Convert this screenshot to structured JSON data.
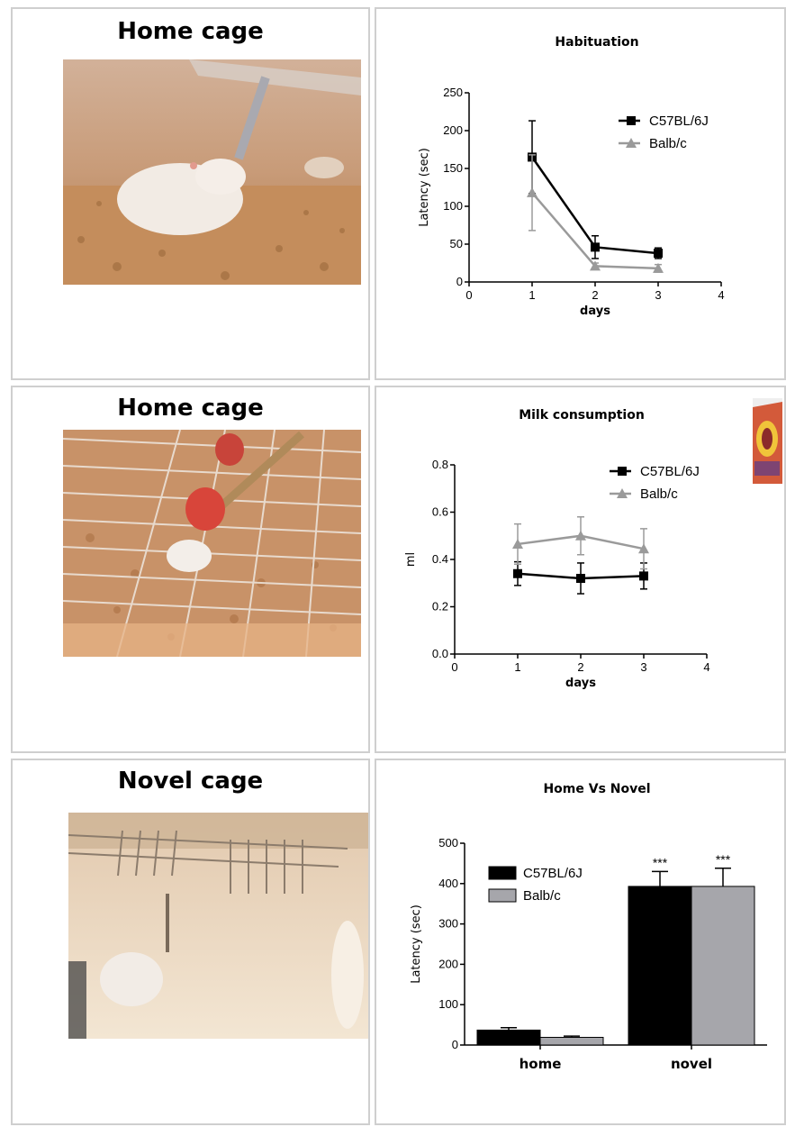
{
  "panels": [
    {
      "title": "Home cage"
    },
    {
      "title": "Home cage"
    },
    {
      "title": "Novel cage"
    }
  ],
  "colors": {
    "c57": "#000000",
    "balb_line": "#9a9a9a",
    "balb_bar": "#a6a6ab",
    "border": "#cfcfcf"
  },
  "chart_data": [
    {
      "type": "line",
      "title": "Habituation",
      "xlabel": "days",
      "ylabel": "Latency (sec)",
      "xlim": [
        0,
        4
      ],
      "ylim": [
        0,
        250
      ],
      "xticks": [
        0,
        1,
        2,
        3,
        4
      ],
      "yticks": [
        0,
        50,
        100,
        150,
        200,
        250
      ],
      "legend_position": "top-right",
      "x": [
        1,
        2,
        3
      ],
      "series": [
        {
          "name": "C57BL/6J",
          "values": [
            165,
            46,
            38
          ],
          "errors": [
            48,
            15,
            7
          ],
          "marker": "square"
        },
        {
          "name": "Balb/c",
          "values": [
            118,
            21,
            18
          ],
          "errors": [
            50,
            4,
            5
          ],
          "marker": "triangle"
        }
      ]
    },
    {
      "type": "line",
      "title": "Milk consumption",
      "xlabel": "days",
      "ylabel": "ml",
      "xlim": [
        0,
        4
      ],
      "ylim": [
        0,
        0.8
      ],
      "xticks": [
        0,
        1,
        2,
        3,
        4
      ],
      "yticks": [
        "0.0",
        "0.2",
        "0.4",
        "0.6",
        "0.8"
      ],
      "legend_position": "top-right",
      "x": [
        1,
        2,
        3
      ],
      "series": [
        {
          "name": "C57BL/6J",
          "values": [
            0.34,
            0.32,
            0.33
          ],
          "errors": [
            0.05,
            0.065,
            0.055
          ],
          "marker": "square"
        },
        {
          "name": "Balb/c",
          "values": [
            0.465,
            0.5,
            0.445
          ],
          "errors": [
            0.085,
            0.08,
            0.085
          ],
          "marker": "triangle"
        }
      ]
    },
    {
      "type": "bar",
      "title": "Home Vs Novel",
      "xlabel": "",
      "ylabel": "Latency (sec)",
      "ylim": [
        0,
        500
      ],
      "yticks": [
        0,
        100,
        200,
        300,
        400,
        500
      ],
      "legend_position": "top-left",
      "categories": [
        "home",
        "novel"
      ],
      "series": [
        {
          "name": "C57BL/6J",
          "values": [
            37,
            393
          ],
          "errors": [
            6,
            37
          ]
        },
        {
          "name": "Balb/c",
          "values": [
            19,
            393
          ],
          "errors": [
            3,
            45
          ]
        }
      ],
      "annotations": [
        "***",
        "***"
      ]
    }
  ]
}
